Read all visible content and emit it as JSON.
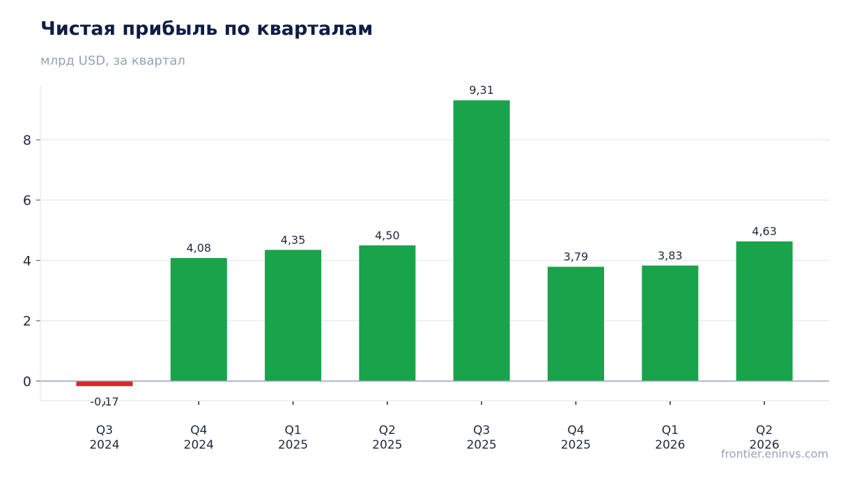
{
  "header": {
    "title": "Чистая прибыль по кварталам",
    "subtitle": "млрд USD, за квартал"
  },
  "footer": {
    "source": "frontier.eninvs.com"
  },
  "colors": {
    "positive": "#19a34a",
    "negative": "#dc2626",
    "grid": "#e2e8f0",
    "zero_line": "#94a3b8"
  },
  "chart_data": {
    "type": "bar",
    "title": "Чистая прибыль по кварталам",
    "subtitle": "млрд USD, за квартал",
    "categories": [
      [
        "Q3",
        "2024"
      ],
      [
        "Q4",
        "2024"
      ],
      [
        "Q1",
        "2025"
      ],
      [
        "Q2",
        "2025"
      ],
      [
        "Q3",
        "2025"
      ],
      [
        "Q4",
        "2025"
      ],
      [
        "Q1",
        "2026"
      ],
      [
        "Q2",
        "2026"
      ]
    ],
    "values": [
      -0.17,
      4.08,
      4.35,
      4.5,
      9.31,
      3.79,
      3.83,
      4.63
    ],
    "value_labels": [
      "-0,17",
      "4,08",
      "4,35",
      "4,50",
      "9,31",
      "3,79",
      "3,83",
      "4,63"
    ],
    "yticks": [
      0,
      2,
      4,
      6,
      8
    ],
    "ylim": [
      -0.65,
      9.8
    ],
    "grid": true,
    "legend": "none"
  }
}
